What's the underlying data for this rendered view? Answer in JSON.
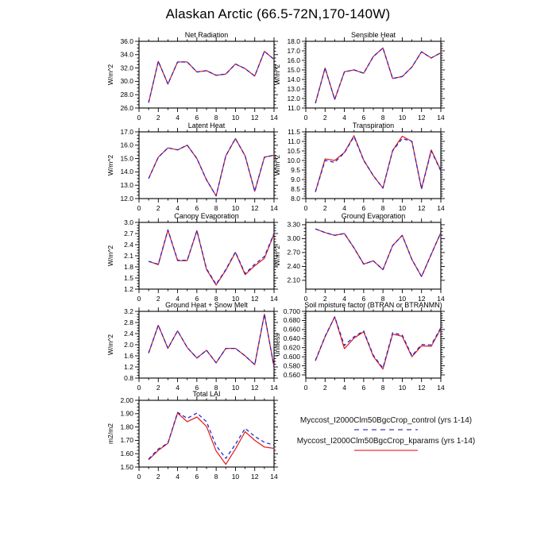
{
  "page_title": "Alaskan Arctic (66.5-72N,170-140W)",
  "legend": {
    "entries": [
      {
        "label": "Myccost_I2000Clm50BgcCrop_control (yrs 1-14)",
        "style": "dashed",
        "color": "#8585d6"
      },
      {
        "label": "Myccost_I2000Clm50BgcCrop_kparams (yrs 1-14)",
        "style": "solid",
        "color": "#f08080"
      }
    ]
  },
  "chart_data": [
    {
      "type": "line",
      "title": "Net Radiation",
      "ylabel": "W/m^2",
      "xlim": [
        0,
        14
      ],
      "xticks": [
        0,
        2,
        4,
        6,
        8,
        10,
        12,
        14
      ],
      "ylim": [
        26.0,
        36.0
      ],
      "yticks": [
        26.0,
        28.0,
        30.0,
        32.0,
        34.0,
        36.0
      ],
      "ytick_decimals": 1,
      "x": [
        1,
        2,
        3,
        4,
        5,
        6,
        7,
        8,
        9,
        10,
        11,
        12,
        13,
        14
      ],
      "series": [
        {
          "name": "control",
          "color": "#2222cc",
          "dash": "4.5,3.5",
          "values": [
            26.8,
            33.0,
            29.6,
            32.9,
            32.9,
            31.4,
            31.6,
            30.9,
            31.1,
            32.6,
            31.9,
            30.8,
            34.5,
            33.3
          ]
        },
        {
          "name": "kparams",
          "color": "#e02020",
          "dash": "",
          "values": [
            26.8,
            33.0,
            29.6,
            32.9,
            32.9,
            31.4,
            31.6,
            30.9,
            31.1,
            32.6,
            31.9,
            30.8,
            34.5,
            33.3
          ]
        }
      ]
    },
    {
      "type": "line",
      "title": "Sensible Heat",
      "ylabel": "W/m^2",
      "xlim": [
        0,
        14
      ],
      "xticks": [
        0,
        2,
        4,
        6,
        8,
        10,
        12,
        14
      ],
      "ylim": [
        11.0,
        18.0
      ],
      "yticks": [
        11.0,
        12.0,
        13.0,
        14.0,
        15.0,
        16.0,
        17.0,
        18.0
      ],
      "ytick_decimals": 1,
      "x": [
        1,
        2,
        3,
        4,
        5,
        6,
        7,
        8,
        9,
        10,
        11,
        12,
        13,
        14
      ],
      "series": [
        {
          "name": "control",
          "color": "#2222cc",
          "dash": "4.5,3.5",
          "values": [
            11.5,
            15.2,
            11.9,
            14.8,
            15.0,
            14.65,
            16.4,
            17.3,
            14.1,
            14.3,
            15.3,
            16.9,
            16.25,
            16.8
          ]
        },
        {
          "name": "kparams",
          "color": "#e02020",
          "dash": "",
          "values": [
            11.5,
            15.2,
            11.9,
            14.8,
            15.0,
            14.65,
            16.4,
            17.3,
            14.1,
            14.3,
            15.3,
            16.9,
            16.25,
            16.8
          ]
        }
      ]
    },
    {
      "type": "line",
      "title": "Latent Heat",
      "ylabel": "W/m^2",
      "xlim": [
        0,
        14
      ],
      "xticks": [
        0,
        2,
        4,
        6,
        8,
        10,
        12,
        14
      ],
      "ylim": [
        12.0,
        17.0
      ],
      "yticks": [
        12.0,
        13.0,
        14.0,
        15.0,
        16.0,
        17.0
      ],
      "ytick_decimals": 1,
      "x": [
        1,
        2,
        3,
        4,
        5,
        6,
        7,
        8,
        9,
        10,
        11,
        12,
        13,
        14
      ],
      "series": [
        {
          "name": "control",
          "color": "#2222cc",
          "dash": "4.5,3.5",
          "values": [
            13.5,
            15.1,
            15.8,
            15.65,
            16.0,
            15.0,
            13.4,
            12.2,
            15.2,
            16.5,
            15.2,
            12.55,
            15.1,
            15.25
          ]
        },
        {
          "name": "kparams",
          "color": "#e02020",
          "dash": "",
          "values": [
            13.5,
            15.1,
            15.8,
            15.65,
            16.0,
            15.0,
            13.4,
            12.2,
            15.2,
            16.5,
            15.2,
            12.55,
            15.1,
            15.25
          ]
        }
      ]
    },
    {
      "type": "line",
      "title": "Transpiration",
      "ylabel": "W/m^2",
      "xlim": [
        0,
        14
      ],
      "xticks": [
        0,
        2,
        4,
        6,
        8,
        10,
        12,
        14
      ],
      "ylim": [
        8.0,
        11.5
      ],
      "yticks": [
        8.0,
        8.5,
        9.0,
        9.5,
        10.0,
        10.5,
        11.0,
        11.5
      ],
      "ytick_decimals": 1,
      "x": [
        1,
        2,
        3,
        4,
        5,
        6,
        7,
        8,
        9,
        10,
        11,
        12,
        13,
        14
      ],
      "series": [
        {
          "name": "control",
          "color": "#2222cc",
          "dash": "4.5,3.5",
          "values": [
            8.35,
            10.0,
            9.9,
            10.4,
            11.25,
            10.0,
            9.2,
            8.55,
            10.5,
            11.15,
            11.0,
            8.5,
            10.5,
            9.45
          ]
        },
        {
          "name": "kparams",
          "color": "#e02020",
          "dash": "",
          "values": [
            8.35,
            10.08,
            10.0,
            10.42,
            11.3,
            10.02,
            9.2,
            8.55,
            10.52,
            11.27,
            11.0,
            8.52,
            10.55,
            9.48
          ]
        }
      ]
    },
    {
      "type": "line",
      "title": "Canopy Evaporation",
      "ylabel": "W/m^2",
      "xlim": [
        0,
        14
      ],
      "xticks": [
        0,
        2,
        4,
        6,
        8,
        10,
        12,
        14
      ],
      "ylim": [
        1.2,
        3.0
      ],
      "yticks": [
        1.2,
        1.5,
        1.8,
        2.1,
        2.4,
        2.7,
        3.0
      ],
      "ytick_decimals": 1,
      "x": [
        1,
        2,
        3,
        4,
        5,
        6,
        7,
        8,
        9,
        10,
        11,
        12,
        13,
        14
      ],
      "series": [
        {
          "name": "control",
          "color": "#2222cc",
          "dash": "4.5,3.5",
          "values": [
            1.95,
            1.87,
            2.8,
            1.98,
            1.98,
            2.78,
            1.75,
            1.33,
            1.73,
            2.2,
            1.62,
            1.87,
            2.08,
            2.7
          ]
        },
        {
          "name": "kparams",
          "color": "#e02020",
          "dash": "",
          "values": [
            1.95,
            1.86,
            2.79,
            1.97,
            1.97,
            2.78,
            1.73,
            1.31,
            1.71,
            2.19,
            1.59,
            1.83,
            2.03,
            2.69
          ]
        }
      ]
    },
    {
      "type": "line",
      "title": "Ground Evaporation",
      "ylabel": "W/m^2",
      "xlim": [
        0,
        14
      ],
      "xticks": [
        0,
        2,
        4,
        6,
        8,
        10,
        12,
        14
      ],
      "ylim": [
        1.91,
        3.35
      ],
      "yticks": [
        2.1,
        2.4,
        2.7,
        3.0,
        3.3
      ],
      "ytick_decimals": 2,
      "x": [
        1,
        2,
        3,
        4,
        5,
        6,
        7,
        8,
        9,
        10,
        11,
        12,
        13,
        14
      ],
      "series": [
        {
          "name": "control",
          "color": "#2222cc",
          "dash": "4.5,3.5",
          "values": [
            3.21,
            3.13,
            3.07,
            3.11,
            2.8,
            2.45,
            2.52,
            2.33,
            2.85,
            3.07,
            2.55,
            2.18,
            2.66,
            3.13
          ]
        },
        {
          "name": "kparams",
          "color": "#e02020",
          "dash": "",
          "values": [
            3.21,
            3.13,
            3.07,
            3.11,
            2.8,
            2.45,
            2.52,
            2.33,
            2.85,
            3.07,
            2.55,
            2.18,
            2.66,
            3.13
          ]
        }
      ]
    },
    {
      "type": "line",
      "title": "Ground Heat + Snow Melt",
      "ylabel": "W/m^2",
      "xlim": [
        0,
        14
      ],
      "xticks": [
        0,
        2,
        4,
        6,
        8,
        10,
        12,
        14
      ],
      "ylim": [
        0.8,
        3.2
      ],
      "yticks": [
        0.8,
        1.2,
        1.6,
        2.0,
        2.4,
        2.8,
        3.2
      ],
      "ytick_decimals": 1,
      "x": [
        1,
        2,
        3,
        4,
        5,
        6,
        7,
        8,
        9,
        10,
        11,
        12,
        13,
        14
      ],
      "series": [
        {
          "name": "control",
          "color": "#2222cc",
          "dash": "4.5,3.5",
          "values": [
            1.7,
            2.7,
            1.87,
            2.5,
            1.9,
            1.52,
            1.8,
            1.35,
            1.87,
            1.87,
            1.6,
            1.28,
            3.1,
            1.2
          ]
        },
        {
          "name": "kparams",
          "color": "#e02020",
          "dash": "",
          "values": [
            1.7,
            2.7,
            1.87,
            2.5,
            1.9,
            1.52,
            1.8,
            1.35,
            1.87,
            1.87,
            1.6,
            1.28,
            3.1,
            1.2
          ]
        }
      ]
    },
    {
      "type": "line",
      "title": "Soil moisture factor (BTRAN or BTRANMN)",
      "ylabel": "unitless",
      "xlim": [
        0,
        14
      ],
      "xticks": [
        0,
        2,
        4,
        6,
        8,
        10,
        12,
        14
      ],
      "ylim": [
        0.553,
        0.7
      ],
      "yticks": [
        0.56,
        0.58,
        0.6,
        0.62,
        0.64,
        0.66,
        0.68,
        0.7
      ],
      "ytick_decimals": 3,
      "x": [
        1,
        2,
        3,
        4,
        5,
        6,
        7,
        8,
        9,
        10,
        11,
        12,
        13,
        14
      ],
      "series": [
        {
          "name": "control",
          "color": "#2222cc",
          "dash": "4.5,3.5",
          "values": [
            0.592,
            0.645,
            0.688,
            0.625,
            0.644,
            0.657,
            0.603,
            0.575,
            0.653,
            0.648,
            0.602,
            0.627,
            0.626,
            0.664
          ]
        },
        {
          "name": "kparams",
          "color": "#e02020",
          "dash": "",
          "values": [
            0.591,
            0.644,
            0.688,
            0.618,
            0.641,
            0.655,
            0.601,
            0.573,
            0.65,
            0.645,
            0.6,
            0.624,
            0.623,
            0.662
          ]
        }
      ]
    },
    {
      "type": "line",
      "title": "Total LAI",
      "ylabel": "m2/m2",
      "xlim": [
        0,
        14
      ],
      "xticks": [
        0,
        2,
        4,
        6,
        8,
        10,
        12,
        14
      ],
      "ylim": [
        1.5,
        2.0
      ],
      "yticks": [
        1.5,
        1.6,
        1.7,
        1.8,
        1.9,
        2.0
      ],
      "ytick_decimals": 2,
      "x": [
        1,
        2,
        3,
        4,
        5,
        6,
        7,
        8,
        9,
        10,
        11,
        12,
        13,
        14
      ],
      "series": [
        {
          "name": "control",
          "color": "#2222cc",
          "dash": "4.5,3.5",
          "values": [
            1.56,
            1.635,
            1.68,
            1.91,
            1.865,
            1.905,
            1.84,
            1.66,
            1.565,
            1.67,
            1.79,
            1.73,
            1.685,
            1.665
          ]
        },
        {
          "name": "kparams",
          "color": "#e02020",
          "dash": "",
          "values": [
            1.555,
            1.625,
            1.678,
            1.905,
            1.84,
            1.875,
            1.805,
            1.62,
            1.52,
            1.635,
            1.765,
            1.7,
            1.65,
            1.64
          ]
        }
      ]
    }
  ]
}
